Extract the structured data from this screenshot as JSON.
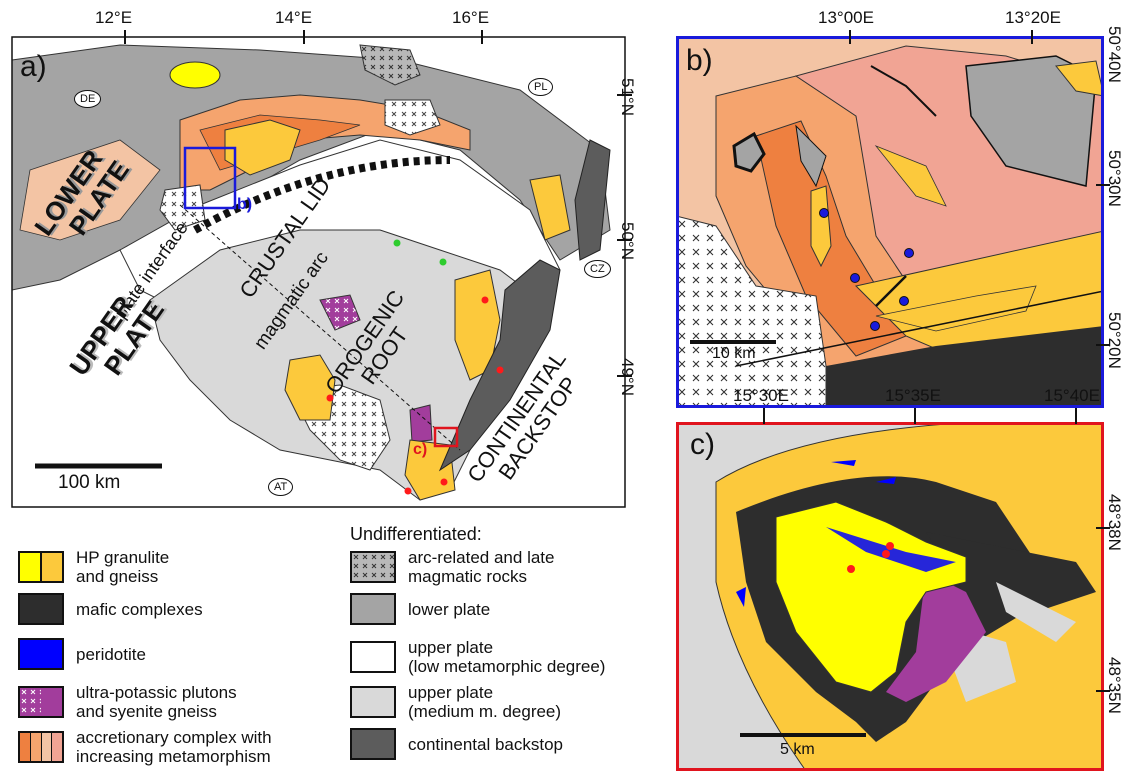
{
  "colors": {
    "hp_granulite": "#ffff00",
    "hp_gneiss": "#fcc93c",
    "mafic": "#2d2d2d",
    "peridotite": "#0000ff",
    "ultrapotassic": "#a23d9c",
    "accretionary_1": "#f5a46e",
    "accretionary_2": "#ee8040",
    "accretionary_3": "#f3c4a4",
    "accretionary_4": "#f1a494",
    "arc": "#b8b8b8",
    "lower_plate": "#a4a4a4",
    "upper_low": "#ffffff",
    "upper_medium": "#d9d9d9",
    "backstop": "#5c5c5c",
    "frame_b": "#1a1adb",
    "frame_c": "#e0141e",
    "red_dot": "#ff1a1a",
    "green_dot": "#2ecc2e"
  },
  "map_a": {
    "panel_label": "a)",
    "lon_ticks": [
      "12°E",
      "14°E",
      "16°E"
    ],
    "lat_ticks": [
      "51°N",
      "50°N",
      "49°N"
    ],
    "countries": [
      "DE",
      "PL",
      "CZ",
      "AT"
    ],
    "lower_plate_label": [
      "LOWER",
      "PLATE"
    ],
    "upper_plate_label": [
      "UPPER",
      "PLATE"
    ],
    "plate_interface": "plate interface",
    "crustal_lid": "CRUSTAL LID",
    "magmatic_arc": "magmatic arc",
    "orogenic_root": [
      "OROGENIC",
      "ROOT"
    ],
    "continental_backstop": [
      "CONTINENTAL",
      "BACKSTOP"
    ],
    "inset_b_label": "b)",
    "inset_c_label": "c)",
    "scalebar": "100 km"
  },
  "map_b": {
    "panel_label": "b)",
    "lon_ticks": [
      "13°00E",
      "13°20E"
    ],
    "lat_ticks": [
      "50°40N",
      "50°30N",
      "50°20N"
    ],
    "scalebar": "10 km"
  },
  "map_c": {
    "panel_label": "c)",
    "lon_ticks": [
      "15°30E",
      "15°35E",
      "15°40E"
    ],
    "lat_ticks": [
      "48°38N",
      "48°35N"
    ],
    "scalebar": "5 km"
  },
  "legend": {
    "header": "Undifferentiated:",
    "left": [
      {
        "label": [
          "HP granulite",
          "and gneiss"
        ]
      },
      {
        "label": [
          "mafic complexes"
        ]
      },
      {
        "label": [
          "peridotite"
        ]
      },
      {
        "label": [
          "ultra-potassic plutons",
          "and syenite gneiss"
        ]
      },
      {
        "label": [
          "accretionary complex with",
          "increasing metamorphism"
        ]
      }
    ],
    "right": [
      {
        "label": [
          "arc-related and late",
          "magmatic rocks"
        ]
      },
      {
        "label": [
          "lower plate"
        ]
      },
      {
        "label": [
          "upper plate",
          "(low metamorphic degree)"
        ]
      },
      {
        "label": [
          "upper plate",
          "(medium m. degree)"
        ]
      },
      {
        "label": [
          "continental backstop"
        ]
      }
    ]
  }
}
